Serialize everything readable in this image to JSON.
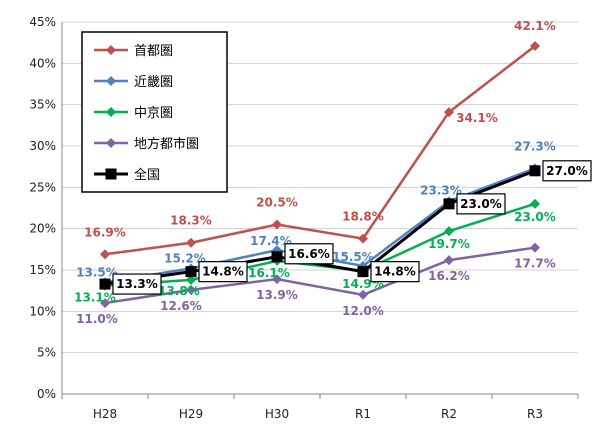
{
  "chart_data": {
    "type": "line",
    "title": "",
    "xlabel": "",
    "ylabel": "",
    "categories": [
      "H28",
      "H29",
      "H30",
      "R1",
      "R2",
      "R3"
    ],
    "y_ticks": [
      "0%",
      "5%",
      "10%",
      "15%",
      "20%",
      "25%",
      "30%",
      "35%",
      "40%",
      "45%"
    ],
    "ylim": [
      0,
      45
    ],
    "grid": true,
    "legend_position": "top-left",
    "series": [
      {
        "name": "首都圏",
        "color": "#c0504d",
        "marker": "diamond",
        "values": [
          16.9,
          18.3,
          20.5,
          18.8,
          34.1,
          42.1
        ],
        "labels": [
          "16.9%",
          "18.3%",
          "20.5%",
          "18.8%",
          "34.1%",
          "42.1%"
        ]
      },
      {
        "name": "近畿圏",
        "color": "#4f81bd",
        "marker": "diamond",
        "values": [
          13.5,
          15.2,
          17.4,
          15.5,
          23.3,
          27.3
        ],
        "labels": [
          "13.5%",
          "15.2%",
          "17.4%",
          "15.5%",
          "23.3%",
          "27.3%"
        ]
      },
      {
        "name": "中京圏",
        "color": "#00b050",
        "marker": "diamond",
        "values": [
          13.1,
          13.8,
          16.1,
          14.9,
          19.7,
          23.0
        ],
        "labels": [
          "13.1%",
          "13.8%",
          "16.1%",
          "14.9%",
          "19.7%",
          "23.0%"
        ]
      },
      {
        "name": "地方都市圏",
        "color": "#8064a2",
        "marker": "diamond",
        "values": [
          11.0,
          12.6,
          13.9,
          12.0,
          16.2,
          17.7
        ],
        "labels": [
          "11.0%",
          "12.6%",
          "13.9%",
          "12.0%",
          "16.2%",
          "17.7%"
        ]
      },
      {
        "name": "全国",
        "color": "#000000",
        "marker": "square",
        "values": [
          13.3,
          14.8,
          16.6,
          14.8,
          23.0,
          27.0
        ],
        "labels": [
          "13.3%",
          "14.8%",
          "16.6%",
          "14.8%",
          "23.0%",
          "27.0%"
        ]
      }
    ]
  }
}
